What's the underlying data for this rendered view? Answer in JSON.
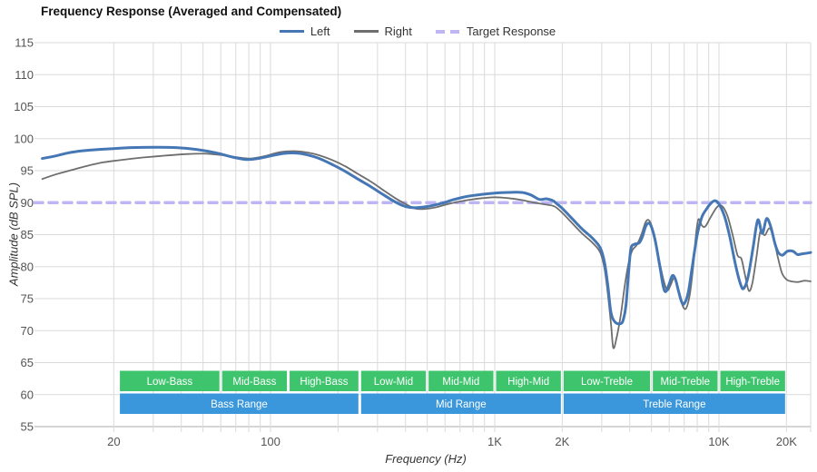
{
  "title": "Frequency Response (Averaged and Compensated)",
  "legend": {
    "position": "top",
    "items": [
      {
        "label": "Left",
        "color": "#4577b5",
        "style": "solid"
      },
      {
        "label": "Right",
        "color": "#6e6e6e",
        "style": "solid"
      },
      {
        "label": "Target Response",
        "color": "#bdb6f2",
        "style": "dashed"
      }
    ]
  },
  "chart_data": {
    "type": "line",
    "title": "Frequency Response (Averaged and Compensated)",
    "xlabel": "Frequency (Hz)",
    "ylabel": "Amplitude (dB SPL)",
    "x_scale": "log",
    "x_range": [
      9.6,
      25640
    ],
    "ylim": [
      55,
      115
    ],
    "y_tick_step": 5,
    "y_ticks": [
      55,
      60,
      65,
      70,
      75,
      80,
      85,
      90,
      95,
      100,
      105,
      110,
      115
    ],
    "x_ticks": [
      {
        "value": 20,
        "label": "20"
      },
      {
        "value": 100,
        "label": "100"
      },
      {
        "value": 1000,
        "label": "1K"
      },
      {
        "value": 2000,
        "label": "2K"
      },
      {
        "value": 10000,
        "label": "10K"
      },
      {
        "value": 20000,
        "label": "20K"
      }
    ],
    "grid": true,
    "grid_color": "#dadada",
    "axis_line_color": "#ababab",
    "target_level_db": 90,
    "series": [
      {
        "name": "Right",
        "color": "#6e6e6e",
        "width": 1.8,
        "dash": null,
        "points": [
          [
            9.6,
            93.7
          ],
          [
            11,
            94.4
          ],
          [
            13,
            95.1
          ],
          [
            15,
            95.7
          ],
          [
            18,
            96.3
          ],
          [
            22,
            96.7
          ],
          [
            27,
            97.05
          ],
          [
            34,
            97.35
          ],
          [
            43,
            97.6
          ],
          [
            52,
            97.65
          ],
          [
            62,
            97.4
          ],
          [
            72,
            97.05
          ],
          [
            82,
            96.9
          ],
          [
            95,
            97.3
          ],
          [
            110,
            97.9
          ],
          [
            128,
            98.05
          ],
          [
            145,
            97.85
          ],
          [
            165,
            97.4
          ],
          [
            190,
            96.6
          ],
          [
            215,
            95.7
          ],
          [
            245,
            94.5
          ],
          [
            280,
            93.3
          ],
          [
            320,
            91.9
          ],
          [
            360,
            90.7
          ],
          [
            400,
            89.8
          ],
          [
            440,
            89.1
          ],
          [
            480,
            89.0
          ],
          [
            550,
            89.3
          ],
          [
            640,
            89.9
          ],
          [
            760,
            90.4
          ],
          [
            880,
            90.7
          ],
          [
            1000,
            90.85
          ],
          [
            1150,
            90.7
          ],
          [
            1320,
            90.4
          ],
          [
            1500,
            90.0
          ],
          [
            1700,
            89.7
          ],
          [
            1850,
            89.4
          ],
          [
            2000,
            88.4
          ],
          [
            2200,
            86.9
          ],
          [
            2450,
            85.2
          ],
          [
            2700,
            83.9
          ],
          [
            2900,
            82.7
          ],
          [
            3000,
            81.6
          ],
          [
            3100,
            79.3
          ],
          [
            3200,
            75.5
          ],
          [
            3300,
            71.0
          ],
          [
            3380,
            67.3
          ],
          [
            3500,
            69.0
          ],
          [
            3650,
            72.5
          ],
          [
            3800,
            77.0
          ],
          [
            3950,
            80.5
          ],
          [
            4100,
            82.5
          ],
          [
            4300,
            83.4
          ],
          [
            4500,
            84.9
          ],
          [
            4700,
            86.9
          ],
          [
            4850,
            87.3
          ],
          [
            5000,
            86.5
          ],
          [
            5200,
            84.3
          ],
          [
            5450,
            80.5
          ],
          [
            5700,
            77.5
          ],
          [
            5900,
            76.3
          ],
          [
            6100,
            77.2
          ],
          [
            6300,
            78.2
          ],
          [
            6500,
            77.0
          ],
          [
            6800,
            74.4
          ],
          [
            7100,
            73.4
          ],
          [
            7400,
            75.5
          ],
          [
            7700,
            80.5
          ],
          [
            7900,
            85.0
          ],
          [
            8100,
            87.4
          ],
          [
            8400,
            86.4
          ],
          [
            8700,
            86.3
          ],
          [
            9200,
            87.8
          ],
          [
            9800,
            89.3
          ],
          [
            10300,
            89.5
          ],
          [
            10900,
            88.0
          ],
          [
            11500,
            85.0
          ],
          [
            12100,
            81.8
          ],
          [
            12600,
            81.2
          ],
          [
            13100,
            78.5
          ],
          [
            13600,
            76.2
          ],
          [
            14100,
            77.5
          ],
          [
            14700,
            81.5
          ],
          [
            15300,
            85.5
          ],
          [
            16000,
            84.9
          ],
          [
            16800,
            86.0
          ],
          [
            17500,
            84.5
          ],
          [
            18300,
            81.5
          ],
          [
            19100,
            79.0
          ],
          [
            20000,
            78.0
          ],
          [
            21000,
            77.7
          ],
          [
            22500,
            77.6
          ],
          [
            24000,
            77.8
          ],
          [
            25640,
            77.7
          ]
        ]
      },
      {
        "name": "Left",
        "color": "#4577b5",
        "width": 3,
        "dash": null,
        "points": [
          [
            9.6,
            96.9
          ],
          [
            11,
            97.3
          ],
          [
            12.6,
            97.8
          ],
          [
            14.5,
            98.1
          ],
          [
            17,
            98.3
          ],
          [
            20,
            98.45
          ],
          [
            24,
            98.6
          ],
          [
            30,
            98.65
          ],
          [
            38,
            98.6
          ],
          [
            47,
            98.3
          ],
          [
            57,
            97.8
          ],
          [
            68,
            97.1
          ],
          [
            78,
            96.75
          ],
          [
            88,
            96.9
          ],
          [
            100,
            97.3
          ],
          [
            115,
            97.7
          ],
          [
            130,
            97.75
          ],
          [
            145,
            97.5
          ],
          [
            165,
            96.9
          ],
          [
            190,
            95.9
          ],
          [
            215,
            94.9
          ],
          [
            245,
            93.7
          ],
          [
            280,
            92.5
          ],
          [
            320,
            91.2
          ],
          [
            360,
            90.1
          ],
          [
            400,
            89.4
          ],
          [
            440,
            89.2
          ],
          [
            500,
            89.4
          ],
          [
            580,
            89.9
          ],
          [
            660,
            90.5
          ],
          [
            760,
            91.0
          ],
          [
            880,
            91.3
          ],
          [
            1000,
            91.5
          ],
          [
            1150,
            91.6
          ],
          [
            1320,
            91.6
          ],
          [
            1450,
            91.2
          ],
          [
            1580,
            90.5
          ],
          [
            1700,
            90.6
          ],
          [
            1820,
            90.3
          ],
          [
            1910,
            89.7
          ],
          [
            2000,
            89.1
          ],
          [
            2200,
            87.6
          ],
          [
            2450,
            85.9
          ],
          [
            2700,
            84.6
          ],
          [
            2900,
            83.4
          ],
          [
            3000,
            82.4
          ],
          [
            3100,
            80.3
          ],
          [
            3200,
            76.8
          ],
          [
            3300,
            72.8
          ],
          [
            3450,
            71.3
          ],
          [
            3650,
            71.1
          ],
          [
            3750,
            71.8
          ],
          [
            3850,
            74.0
          ],
          [
            3950,
            79.0
          ],
          [
            4050,
            82.8
          ],
          [
            4200,
            83.5
          ],
          [
            4400,
            83.7
          ],
          [
            4550,
            84.6
          ],
          [
            4700,
            86.2
          ],
          [
            4850,
            86.8
          ],
          [
            5000,
            86.2
          ],
          [
            5200,
            84.0
          ],
          [
            5450,
            80.0
          ],
          [
            5650,
            76.8
          ],
          [
            5800,
            76.1
          ],
          [
            6000,
            77.3
          ],
          [
            6200,
            78.6
          ],
          [
            6400,
            78.0
          ],
          [
            6600,
            76.2
          ],
          [
            6800,
            74.6
          ],
          [
            7000,
            74.2
          ],
          [
            7300,
            76.0
          ],
          [
            7600,
            80.0
          ],
          [
            8000,
            85.0
          ],
          [
            8400,
            87.8
          ],
          [
            8800,
            89.0
          ],
          [
            9200,
            89.9
          ],
          [
            9600,
            90.3
          ],
          [
            10000,
            89.8
          ],
          [
            10600,
            87.8
          ],
          [
            11200,
            84.5
          ],
          [
            11900,
            80.0
          ],
          [
            12500,
            77.2
          ],
          [
            12900,
            76.6
          ],
          [
            13500,
            78.5
          ],
          [
            14200,
            83.0
          ],
          [
            14900,
            87.3
          ],
          [
            15600,
            85.2
          ],
          [
            16300,
            87.5
          ],
          [
            17000,
            86.3
          ],
          [
            17800,
            83.5
          ],
          [
            18400,
            82.2
          ],
          [
            19200,
            81.8
          ],
          [
            20200,
            82.4
          ],
          [
            21400,
            82.4
          ],
          [
            22400,
            81.9
          ],
          [
            23500,
            82.0
          ],
          [
            25640,
            82.2
          ]
        ]
      },
      {
        "name": "Target Response",
        "color": "#bdb6f2",
        "width": 3.6,
        "dash": [
          9,
          7
        ],
        "points": [
          [
            9.6,
            90
          ],
          [
            25640,
            90
          ]
        ]
      }
    ],
    "bands": {
      "green_color": "#3ec46d",
      "blue_color": "#3b97dc",
      "label_color": "#ffffff",
      "sub_ranges": [
        {
          "label": "Low-Bass",
          "from": 21,
          "to": 60
        },
        {
          "label": "Mid-Bass",
          "from": 60,
          "to": 120
        },
        {
          "label": "High-Bass",
          "from": 120,
          "to": 250
        },
        {
          "label": "Low-Mid",
          "from": 250,
          "to": 500
        },
        {
          "label": "Mid-Mid",
          "from": 500,
          "to": 1000
        },
        {
          "label": "High-Mid",
          "from": 1000,
          "to": 2000
        },
        {
          "label": "Low-Treble",
          "from": 2000,
          "to": 5000
        },
        {
          "label": "Mid-Treble",
          "from": 5000,
          "to": 10000
        },
        {
          "label": "High-Treble",
          "from": 10000,
          "to": 20000
        }
      ],
      "main_ranges": [
        {
          "label": "Bass Range",
          "from": 21,
          "to": 250
        },
        {
          "label": "Mid Range",
          "from": 250,
          "to": 2000
        },
        {
          "label": "Treble Range",
          "from": 2000,
          "to": 20000
        }
      ]
    }
  }
}
